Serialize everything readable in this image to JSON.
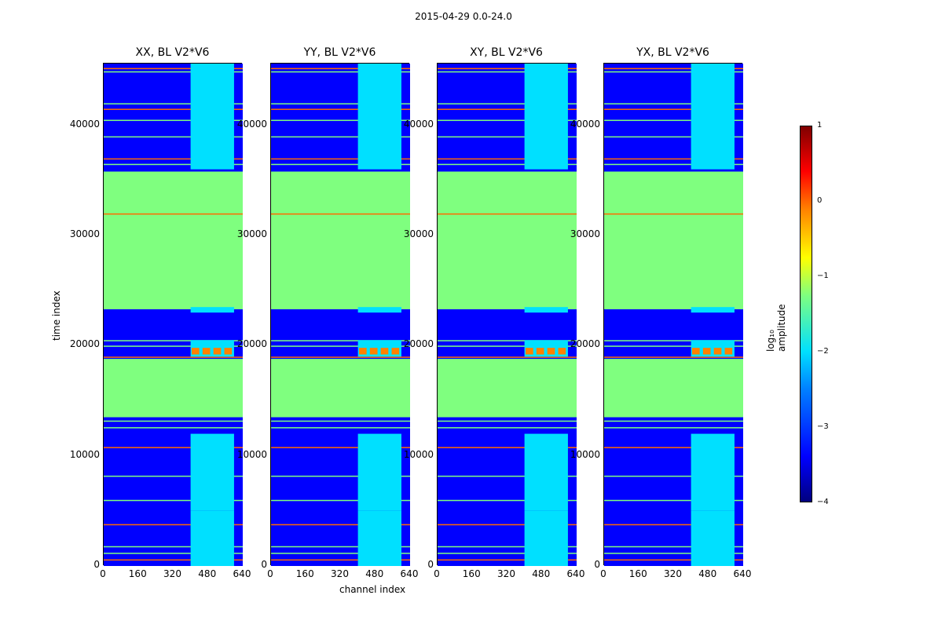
{
  "figure": {
    "title": "2015-04-29 0.0-24.0",
    "xlabel": "channel index",
    "ylabel": "time index",
    "colorbar_label": "log₁₀ amplitude"
  },
  "chart_data": {
    "type": "heatmap",
    "title": "2015-04-29 0.0-24.0",
    "xlabel": "channel index",
    "ylabel": "time index",
    "xlim": [
      0,
      640
    ],
    "ylim": [
      0,
      45600
    ],
    "x_ticks": [
      "0",
      "160",
      "320",
      "480",
      "640"
    ],
    "y_ticks": [
      "0",
      "10000",
      "20000",
      "30000",
      "40000"
    ],
    "colorbar": {
      "label": "log₁₀ amplitude",
      "range": [
        -4,
        1
      ],
      "ticks": [
        "1",
        "0",
        "−1",
        "−2",
        "−3",
        "−4"
      ]
    },
    "panels": [
      {
        "title": "XX, BL V2*V6",
        "pol": "XX"
      },
      {
        "title": "YY, BL V2*V6",
        "pol": "YY"
      },
      {
        "title": "XY, BL V2*V6",
        "pol": "XY"
      },
      {
        "title": "YX, BL V2*V6",
        "pol": "YX"
      }
    ],
    "uniform_blocks": [
      {
        "t_start": 23300,
        "t_end": 35800,
        "log_amplitude": -1.0
      },
      {
        "t_start": 13500,
        "t_end": 18800,
        "log_amplitude": -1.0
      }
    ],
    "rfi_channel_range": [
      400,
      600
    ],
    "strong_feature": {
      "t_start": 19200,
      "t_end": 19800,
      "log_amplitude": 0.3
    }
  }
}
